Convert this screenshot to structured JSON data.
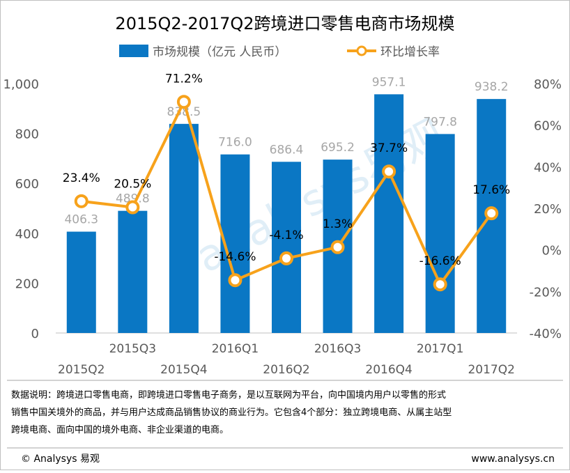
{
  "chart_data": {
    "type": "bar",
    "title": "2015Q2-2017Q2跨境进口零售电商市场规模",
    "categories": [
      "2015Q2",
      "2015Q3",
      "2015Q4",
      "2016Q1",
      "2016Q2",
      "2016Q3",
      "2016Q4",
      "2017Q1",
      "2017Q2"
    ],
    "series": [
      {
        "name": "市场规模（亿元 人民币）",
        "type": "bar",
        "axis": "left",
        "values": [
          406.3,
          489.8,
          838.5,
          716.0,
          686.4,
          695.2,
          957.1,
          797.8,
          938.2
        ],
        "labels": [
          "406.3",
          "489.8",
          "838.5",
          "716.0",
          "686.4",
          "695.2",
          "957.1",
          "797.8",
          "938.2"
        ]
      },
      {
        "name": "环比增长率",
        "type": "line",
        "axis": "right",
        "values": [
          23.4,
          20.5,
          71.2,
          -14.6,
          -4.1,
          1.3,
          37.7,
          -16.6,
          17.6
        ],
        "labels": [
          "23.4%",
          "20.5%",
          "71.2%",
          "-14.6%",
          "-4.1%",
          "1.3%",
          "37.7%",
          "-16.6%",
          "17.6%"
        ]
      }
    ],
    "left_axis": {
      "min": 0,
      "max": 1000,
      "ticks": [
        0,
        200,
        400,
        600,
        800,
        1000
      ],
      "tick_labels": [
        "0",
        "200",
        "400",
        "600",
        "800",
        "1,000"
      ]
    },
    "right_axis": {
      "min": -40,
      "max": 80,
      "ticks": [
        -40,
        -20,
        0,
        20,
        40,
        60,
        80
      ],
      "tick_labels": [
        "-40%",
        "-20%",
        "0%",
        "20%",
        "40%",
        "60%",
        "80%"
      ]
    },
    "legend_position": "top",
    "grid": false,
    "colors": {
      "bar": "#0a77c4",
      "line": "#f7a21b",
      "marker_fill": "#ffffff"
    }
  },
  "note": {
    "lines": [
      "数据说明：跨境进口零售电商，即跨境进口零售电子商务，是以互联网为平台，向中国境内用户以零售的形式",
      "销售中国关境外的商品，并与用户达成商品销售协议的商业行为。它包含4个部分：独立跨境电商、从属主站型",
      "跨境电商、面向中国的境外电商、非企业渠道的电商。"
    ]
  },
  "footer": {
    "copyright": "© Analysys 易观",
    "url": "www.analysys.cn"
  },
  "watermark": {
    "text": "analysys易观"
  }
}
